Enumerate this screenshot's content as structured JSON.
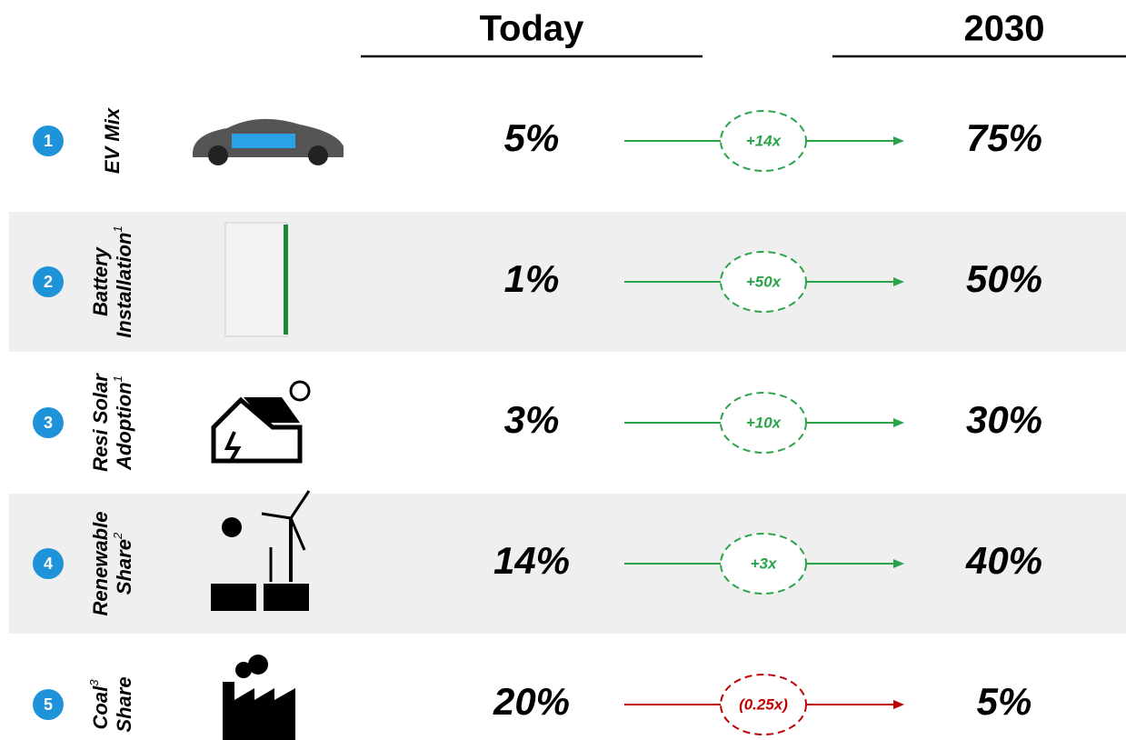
{
  "header": {
    "today": "Today",
    "future": "2030"
  },
  "rows": [
    {
      "number": "1",
      "label_lines": [
        {
          "text": "EV Mix"
        }
      ],
      "today": "5%",
      "change": "+14x",
      "future": "75%",
      "color": "#2aa34a"
    },
    {
      "number": "2",
      "label_lines": [
        {
          "text": "Battery"
        },
        {
          "text": "Installation",
          "sup": "1"
        }
      ],
      "today": "1%",
      "change": "+50x",
      "future": "50%",
      "color": "#2aa34a"
    },
    {
      "number": "3",
      "label_lines": [
        {
          "text": "Resi Solar"
        },
        {
          "text": "Adoption",
          "sup": "1"
        }
      ],
      "today": "3%",
      "change": "+10x",
      "future": "30%",
      "color": "#2aa34a"
    },
    {
      "number": "4",
      "label_lines": [
        {
          "text": "Renewable"
        },
        {
          "text": "Share",
          "sup": "2"
        }
      ],
      "today": "14%",
      "change": "+3x",
      "future": "40%",
      "color": "#2aa34a"
    },
    {
      "number": "5",
      "label_lines": [
        {
          "text": "Coal",
          "sup": "3"
        },
        {
          "text": "Share"
        }
      ],
      "today": "20%",
      "change": "(0.25x)",
      "future": "5%",
      "color": "#c00000"
    }
  ]
}
